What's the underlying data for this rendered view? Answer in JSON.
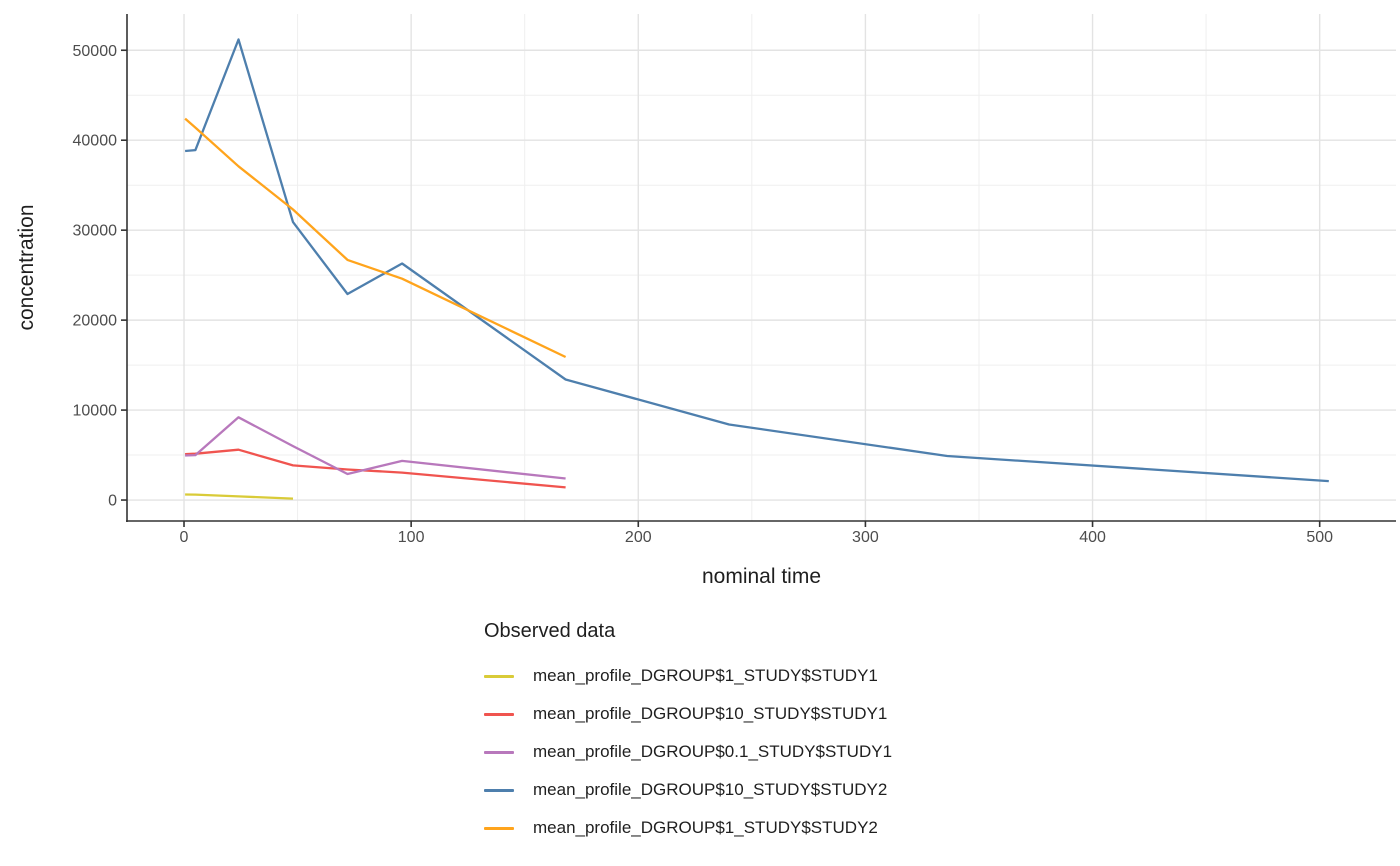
{
  "chart_data": {
    "type": "line",
    "title": "",
    "xlabel": "nominal time",
    "ylabel": "concentration",
    "x_ticks": [
      0,
      100,
      200,
      300,
      400,
      500
    ],
    "y_ticks": [
      0,
      10000,
      20000,
      30000,
      40000,
      50000
    ],
    "xlim": [
      -25.1,
      533.6
    ],
    "ylim": [
      -2330,
      54030
    ],
    "grid": "major and minor gridlines, light gray on white panel",
    "legend_position": "bottom-left",
    "legend_title": "Observed data",
    "axis_color": "#333333",
    "grid_major_color": "#e3e3e3",
    "grid_minor_color": "#efefef",
    "tick_label_color": "#4d4d4d",
    "series": [
      {
        "name": "mean_profile_DGROUP$1_STUDY$STUDY1",
        "color": "#d9cb38",
        "x": [
          0.5,
          5,
          24,
          48
        ],
        "y": [
          620,
          600,
          410,
          160
        ]
      },
      {
        "name": "mean_profile_DGROUP$10_STUDY$STUDY1",
        "color": "#f0544f",
        "x": [
          0.5,
          5,
          24,
          48,
          72,
          96,
          168
        ],
        "y": [
          5100,
          5150,
          5600,
          3850,
          3400,
          3050,
          1400
        ]
      },
      {
        "name": "mean_profile_DGROUP$0.1_STUDY$STUDY1",
        "color": "#b878bc",
        "x": [
          0.5,
          5,
          24,
          48,
          72,
          96,
          168
        ],
        "y": [
          4950,
          5000,
          9200,
          6000,
          2900,
          4350,
          2400
        ]
      },
      {
        "name": "mean_profile_DGROUP$10_STUDY$STUDY2",
        "color": "#4e7fad",
        "x": [
          0.5,
          5,
          24,
          48,
          72,
          96,
          168,
          240,
          336,
          504
        ],
        "y": [
          38800,
          38900,
          51200,
          30900,
          22900,
          26300,
          13400,
          8400,
          4900,
          2100
        ]
      },
      {
        "name": "mean_profile_DGROUP$1_STUDY$STUDY2",
        "color": "#ffa41c",
        "x": [
          0.5,
          5,
          24,
          48,
          72,
          96,
          168
        ],
        "y": [
          42400,
          41400,
          37100,
          32300,
          26700,
          24600,
          15900
        ]
      }
    ]
  }
}
